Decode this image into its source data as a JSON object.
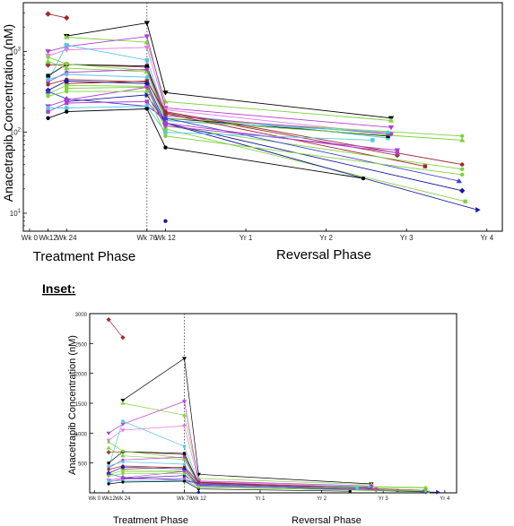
{
  "inset_label": "Inset:",
  "chart_data": [
    {
      "type": "line",
      "scale": "log",
      "ylabel": "Anacetrapib Concentration (nM)",
      "ylim": [
        6,
        4000
      ],
      "yticks": [
        {
          "value": 10,
          "base": "10",
          "exp": "1"
        },
        {
          "value": 100,
          "base": "10",
          "exp": "2"
        },
        {
          "value": 1000,
          "base": "10",
          "exp": "3"
        }
      ],
      "xticks": [
        {
          "x": 0,
          "label": "Wk 0"
        },
        {
          "x": 12,
          "label": "Wk12"
        },
        {
          "x": 24,
          "label": "Wk 24"
        },
        {
          "x": 76,
          "label": "Wk 76"
        },
        {
          "x": 88,
          "label": "Wk 12"
        },
        {
          "x": 140,
          "label": "Yr 1"
        },
        {
          "x": 192,
          "label": "Yr 2"
        },
        {
          "x": 244,
          "label": "Yr 3"
        },
        {
          "x": 296,
          "label": "Yr 4"
        }
      ],
      "phases": [
        "Treatment Phase",
        "Reversal Phase"
      ],
      "grid": false,
      "series": [
        {
          "color": "#a0282a",
          "marker": "diamond",
          "points": [
            [
              12,
              2900
            ],
            [
              24,
              2600
            ]
          ]
        },
        {
          "color": "#000000",
          "marker": "triangle-down",
          "points": [
            [
              24,
              1550
            ],
            [
              76,
              2250
            ],
            [
              88,
              310
            ],
            [
              234,
              150
            ]
          ]
        },
        {
          "color": "#7fd23c",
          "marker": "triangle-up",
          "points": [
            [
              24,
              1500
            ],
            [
              76,
              1300
            ],
            [
              88,
              240
            ],
            [
              234,
              140
            ]
          ]
        },
        {
          "color": "#b43cd2",
          "marker": "triangle-down",
          "points": [
            [
              12,
              1000
            ],
            [
              24,
              1150
            ],
            [
              76,
              1530
            ],
            [
              88,
              200
            ],
            [
              234,
              115
            ]
          ]
        },
        {
          "color": "#e878e8",
          "marker": "triangle-down",
          "points": [
            [
              12,
              880
            ],
            [
              24,
              1050
            ],
            [
              76,
              1120
            ],
            [
              88,
              190
            ],
            [
              234,
              95
            ]
          ]
        },
        {
          "color": "#50c8e6",
          "marker": "square",
          "points": [
            [
              12,
              430
            ],
            [
              24,
              1200
            ],
            [
              76,
              780
            ],
            [
              88,
              170
            ],
            [
              232,
              85
            ]
          ]
        },
        {
          "color": "#9a3c3c",
          "marker": "diamond",
          "points": [
            [
              12,
              680
            ],
            [
              24,
              690
            ],
            [
              76,
              640
            ],
            [
              88,
              175
            ],
            [
              238,
              52
            ]
          ]
        },
        {
          "color": "#0a0a0a",
          "marker": "square",
          "points": [
            [
              12,
              500
            ],
            [
              24,
              690
            ],
            [
              76,
              660
            ],
            [
              88,
              150
            ],
            [
              232,
              90
            ]
          ]
        },
        {
          "color": "#7fd23c",
          "marker": "circle",
          "points": [
            [
              12,
              850
            ],
            [
              24,
              700
            ],
            [
              76,
              580
            ],
            [
              88,
              150
            ],
            [
              280,
              90
            ]
          ]
        },
        {
          "color": "#7fd23c",
          "marker": "triangle-up",
          "points": [
            [
              12,
              750
            ],
            [
              24,
              620
            ],
            [
              76,
              560
            ],
            [
              88,
              140
            ],
            [
              280,
              80
            ]
          ]
        },
        {
          "color": "#b43cd2",
          "marker": "circle",
          "points": [
            [
              12,
              420
            ],
            [
              24,
              550
            ],
            [
              76,
              600
            ],
            [
              88,
              160
            ],
            [
              234,
              95
            ]
          ]
        },
        {
          "color": "#50c8e6",
          "marker": "circle",
          "points": [
            [
              12,
              450
            ],
            [
              24,
              520
            ],
            [
              76,
              480
            ],
            [
              88,
              140
            ],
            [
              232,
              100
            ]
          ]
        },
        {
          "color": "#a0282a",
          "marker": "circle",
          "points": [
            [
              12,
              390
            ],
            [
              24,
              450
            ],
            [
              76,
              420
            ],
            [
              88,
              180
            ],
            [
              280,
              40
            ]
          ]
        },
        {
          "color": "#a0282a",
          "marker": "square",
          "points": [
            [
              24,
              400
            ],
            [
              76,
              430
            ],
            [
              88,
              170
            ],
            [
              256,
              38
            ]
          ]
        },
        {
          "color": "#7fd23c",
          "marker": "circle",
          "points": [
            [
              12,
              300
            ],
            [
              24,
              380
            ],
            [
              76,
              370
            ],
            [
              88,
              120
            ],
            [
              280,
              35
            ]
          ]
        },
        {
          "color": "#7fd23c",
          "marker": "square",
          "points": [
            [
              24,
              350
            ],
            [
              76,
              360
            ],
            [
              88,
              110
            ],
            [
              282,
              14
            ]
          ]
        },
        {
          "color": "#1a1aa0",
          "marker": "diamond",
          "points": [
            [
              12,
              330
            ],
            [
              24,
              430
            ],
            [
              76,
              400
            ],
            [
              88,
              130
            ],
            [
              280,
              19
            ]
          ]
        },
        {
          "color": "#1a1aa0",
          "marker": "triangle-right",
          "points": [
            [
              24,
              240
            ],
            [
              76,
              290
            ],
            [
              88,
              130
            ],
            [
              290,
              11
            ]
          ]
        },
        {
          "color": "#3c3cd2",
          "marker": "triangle-up",
          "points": [
            [
              12,
              320
            ],
            [
              24,
              260
            ],
            [
              76,
              210
            ],
            [
              88,
              150
            ],
            [
              278,
              25
            ]
          ]
        },
        {
          "color": "#b43cd2",
          "marker": "square",
          "points": [
            [
              12,
              180
            ],
            [
              24,
              230
            ],
            [
              76,
              240
            ],
            [
              88,
              130
            ],
            [
              238,
              56
            ]
          ]
        },
        {
          "color": "#b43cd2",
          "marker": "triangle-down",
          "points": [
            [
              12,
              210
            ],
            [
              24,
              250
            ],
            [
              76,
              360
            ],
            [
              88,
              120
            ],
            [
              238,
              60
            ]
          ]
        },
        {
          "color": "#50c8e6",
          "marker": "square",
          "points": [
            [
              12,
              200
            ],
            [
              24,
              200
            ],
            [
              76,
              210
            ],
            [
              88,
              100
            ],
            [
              222,
              80
            ]
          ]
        },
        {
          "color": "#000000",
          "marker": "circle",
          "points": [
            [
              12,
              150
            ],
            [
              24,
              180
            ],
            [
              76,
              195
            ],
            [
              88,
              65
            ],
            [
              216,
              27
            ]
          ]
        },
        {
          "color": "#7fd23c",
          "marker": "circle",
          "points": [
            [
              12,
              280
            ],
            [
              24,
              320
            ],
            [
              76,
              320
            ],
            [
              88,
              90
            ],
            [
              280,
              30
            ]
          ]
        },
        {
          "color": "#1a1aa0",
          "marker": "circle",
          "points": [
            [
              88,
              8
            ]
          ]
        }
      ]
    },
    {
      "type": "line",
      "scale": "linear",
      "ylabel": "Anacetrapib Concentration (nM)",
      "ylim": [
        0,
        3000
      ],
      "yticks": [
        {
          "value": 500,
          "label": "500"
        },
        {
          "value": 1000,
          "label": "1000"
        },
        {
          "value": 1500,
          "label": "1500"
        },
        {
          "value": 2000,
          "label": "2000"
        },
        {
          "value": 2500,
          "label": "2500"
        },
        {
          "value": 3000,
          "label": "3000"
        }
      ],
      "xticks": [
        {
          "x": 0,
          "label": "Wk 0"
        },
        {
          "x": 12,
          "label": "Wk12"
        },
        {
          "x": 24,
          "label": "Wk 24"
        },
        {
          "x": 76,
          "label": "Wk 76"
        },
        {
          "x": 88,
          "label": "Wk 12"
        },
        {
          "x": 140,
          "label": "Yr 1"
        },
        {
          "x": 192,
          "label": "Yr 2"
        },
        {
          "x": 244,
          "label": "Yr 3"
        },
        {
          "x": 296,
          "label": "Yr 4"
        }
      ],
      "phases": [
        "Treatment Phase",
        "Reversal Phase"
      ],
      "grid": false,
      "same_series_as": 0
    }
  ]
}
